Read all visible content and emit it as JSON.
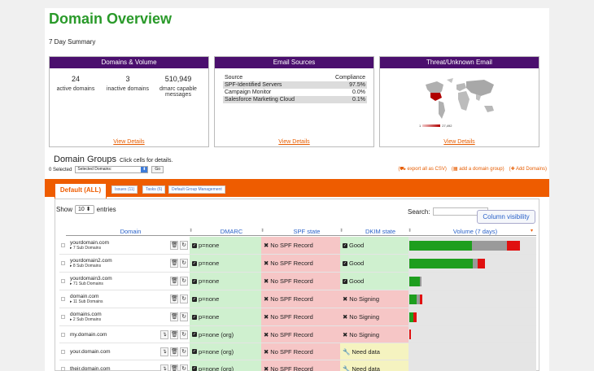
{
  "page": {
    "title": "Domain Overview",
    "subtitle": "7 Day Summary"
  },
  "cards": {
    "domains": {
      "header": "Domains & Volume",
      "stats": [
        {
          "value": "24",
          "label": "active domains"
        },
        {
          "value": "3",
          "label": "inactive domains"
        },
        {
          "value": "510,949",
          "label": "dmarc capable messages"
        }
      ],
      "link": "View Details"
    },
    "sources": {
      "header": "Email Sources",
      "col_source": "Source",
      "col_compliance": "Compliance",
      "rows": [
        {
          "name": "SPF-Identified Servers",
          "value": "97.5%"
        },
        {
          "name": "Campaign Monitor",
          "value": "0.0%"
        },
        {
          "name": "Salesforce Marketing Cloud",
          "value": "0.1%"
        }
      ],
      "link": "View Details"
    },
    "threat": {
      "header": "Threat/Unknown Email",
      "legend_min": "1",
      "legend_max": "27,492",
      "link": "View Details"
    }
  },
  "groups": {
    "title": "Domain Groups",
    "hint": "Click cells for details.",
    "selected_label": "0 Selected",
    "select_value": "Selected Domains:",
    "go_label": "Go",
    "actions": [
      "(⛟ export all as CSV)",
      "(▦ add a domain group)",
      "(✚ Add Domains)"
    ]
  },
  "tabs": {
    "active": "Default (ALL)",
    "others": [
      "Issues (11)",
      "Tasks (6)",
      "Default Group Management"
    ]
  },
  "table": {
    "show_label": "Show",
    "entries_value": "10",
    "entries_label": "entries",
    "search_label": "Search:",
    "colvis_label": "Column visibility",
    "headers": [
      "Domain",
      "DMARC",
      "SPF state",
      "DKIM state",
      "Volume (7 days)"
    ],
    "rows": [
      {
        "domain": "yourdomain.com",
        "sub": "▸ 7 Sub Domains",
        "dmarc": "p=none",
        "spf": "No SPF Record",
        "dkim": "Good",
        "dkim_state": "good",
        "vol": [
          0.52,
          0.29,
          0.11
        ],
        "fork": false
      },
      {
        "domain": "yourdomain2.com",
        "sub": "▸ 8 Sub Domains",
        "dmarc": "p=none",
        "spf": "No SPF Record",
        "dkim": "Good",
        "dkim_state": "good",
        "vol": [
          0.53,
          0.04,
          0.06
        ],
        "fork": false
      },
      {
        "domain": "yourdomain3.com",
        "sub": "▸ 71 Sub Domains",
        "dmarc": "p=none",
        "spf": "No SPF Record",
        "dkim": "Good",
        "dkim_state": "good",
        "vol": [
          0.09,
          0.01,
          0.0
        ],
        "fork": false
      },
      {
        "domain": "domain.com",
        "sub": "▸ 11 Sub Domains",
        "dmarc": "p=none",
        "spf": "No SPF Record",
        "dkim": "No Signing",
        "dkim_state": "bad",
        "vol": [
          0.06,
          0.03,
          0.02
        ],
        "fork": false
      },
      {
        "domain": "domains.com",
        "sub": "▸ 2 Sub Domains",
        "dmarc": "p=none",
        "spf": "No SPF Record",
        "dkim": "No Signing",
        "dkim_state": "bad",
        "vol": [
          0.035,
          0.0,
          0.025
        ],
        "fork": false
      },
      {
        "domain": "my.domain.com",
        "sub": "",
        "dmarc": "p=none (org)",
        "spf": "No SPF Record",
        "dkim": "No Signing",
        "dkim_state": "bad",
        "vol": [
          0.0,
          0.0,
          0.012
        ],
        "fork": true
      },
      {
        "domain": "your.domain.com",
        "sub": "",
        "dmarc": "p=none (org)",
        "spf": "No SPF Record",
        "dkim": "Need data",
        "dkim_state": "warn",
        "vol": [
          0.0,
          0.0,
          0.0
        ],
        "fork": true
      },
      {
        "domain": "their.domain.com",
        "sub": "",
        "dmarc": "p=none (org)",
        "spf": "No SPF Record",
        "dkim": "Need data",
        "dkim_state": "warn",
        "vol": [
          0.0,
          0.0,
          0.0
        ],
        "fork": true
      }
    ]
  },
  "colors": {
    "title_green": "#2a9a2a",
    "card_header": "#4b0f6e",
    "accent_orange": "#ee5c00",
    "good": "#cff0cf",
    "bad": "#f6c6c6",
    "warn": "#f5f3c0"
  }
}
